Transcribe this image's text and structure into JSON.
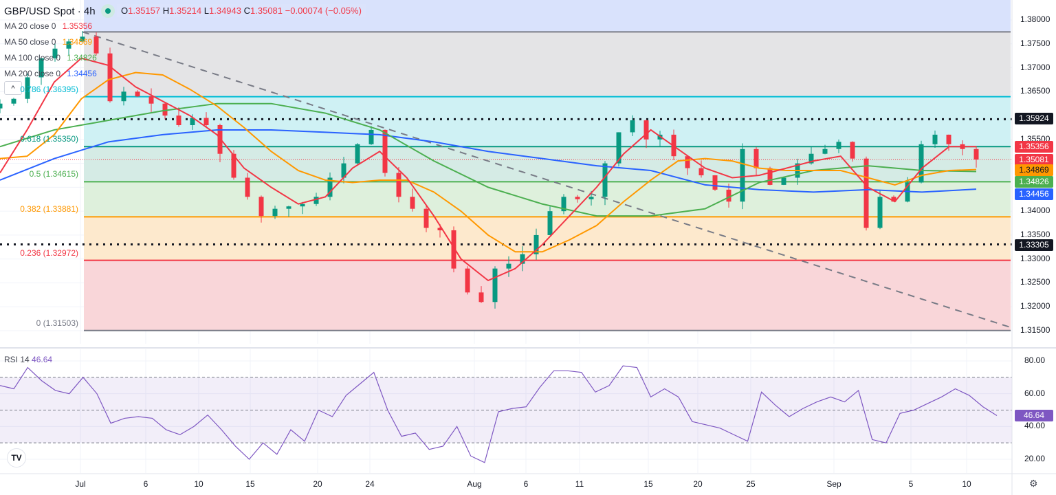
{
  "header": {
    "symbol": "GBP/USD Spot · 4h",
    "open_label": "O",
    "open": "1.35157",
    "high_label": "H",
    "high": "1.35214",
    "low_label": "L",
    "low": "1.34943",
    "close_label": "C",
    "close": "1.35081",
    "change": "−0.00074 (−0.05%)"
  },
  "legend": [
    {
      "label": "MA 20 close 0",
      "value": "1.35356",
      "color": "#f23645"
    },
    {
      "label": "MA 50 close 0",
      "value": "1.34869",
      "color": "#ff9800"
    },
    {
      "label": "MA 100 close 0",
      "value": "1.34826",
      "color": "#4caf50"
    },
    {
      "label": "MA 200 close 0",
      "value": "1.34456",
      "color": "#2962ff"
    }
  ],
  "collapse_icon": "^",
  "fib_levels": [
    {
      "label": "0.786 (1.36395)",
      "price": 1.36395,
      "color": "#00bcd4"
    },
    {
      "label": "0.618 (1.35350)",
      "price": 1.3535,
      "color": "#089981"
    },
    {
      "label": "0.5 (1.34615)",
      "price": 1.34615,
      "color": "#4caf50"
    },
    {
      "label": "0.382 (1.33881)",
      "price": 1.33881,
      "color": "#ff9800"
    },
    {
      "label": "0.236 (1.32972)",
      "price": 1.32972,
      "color": "#f23645"
    },
    {
      "label": "0 (1.31503)",
      "price": 1.31503,
      "color": "#787b86"
    }
  ],
  "price_axis": [
    "1.38000",
    "1.37500",
    "1.37000",
    "1.36500",
    "1.35500",
    "1.34000",
    "1.33500",
    "1.33000",
    "1.32500",
    "1.32000",
    "1.31500"
  ],
  "price_tags": [
    {
      "value": "1.35924",
      "bg": "#131722",
      "fg": "#ffffff"
    },
    {
      "value": "1.35356",
      "bg": "#f23645",
      "fg": "#ffffff"
    },
    {
      "value": "1.35081",
      "bg": "#f23645",
      "fg": "#ffffff"
    },
    {
      "value": "1.34869",
      "bg": "#ff9800",
      "fg": "#131722"
    },
    {
      "value": "1.34826",
      "bg": "#4caf50",
      "fg": "#ffffff"
    },
    {
      "value": "1.34456",
      "bg": "#2962ff",
      "fg": "#ffffff"
    },
    {
      "value": "1.33305",
      "bg": "#131722",
      "fg": "#ffffff"
    }
  ],
  "time_axis": [
    "Jul",
    "6",
    "10",
    "15",
    "20",
    "24",
    "Aug",
    "6",
    "11",
    "15",
    "20",
    "25",
    "Sep",
    "5",
    "10"
  ],
  "rsi": {
    "label": "RSI 14",
    "value": "46.64",
    "axis": [
      "80.00",
      "60.00",
      "40.00",
      "20.00"
    ],
    "tag": "46.64",
    "color": "#7e57c2"
  },
  "logo_text": "TV",
  "settings_icon": "gear-icon",
  "chart_data": {
    "type": "candlestick",
    "title": "GBP/USD Spot · 4h",
    "ylim": [
      1.3115,
      1.3845
    ],
    "horizontal_levels": [
      1.35924,
      1.33305
    ],
    "current_price": 1.35081,
    "trendline": [
      1.3775,
      1.3157
    ],
    "closes": [
      1.3625,
      1.3635,
      1.368,
      1.372,
      1.374,
      1.3755,
      1.3765,
      1.373,
      1.363,
      1.365,
      1.364,
      1.3625,
      1.36,
      1.358,
      1.3595,
      1.358,
      1.352,
      1.347,
      1.343,
      1.339,
      1.3405,
      1.341,
      1.3415,
      1.343,
      1.347,
      1.35,
      1.354,
      1.357,
      1.348,
      1.343,
      1.3405,
      1.3365,
      1.336,
      1.328,
      1.323,
      1.321,
      1.328,
      1.329,
      1.331,
      1.335,
      1.34,
      1.343,
      1.3425,
      1.343,
      1.35,
      1.3565,
      1.359,
      1.355,
      1.356,
      1.3515,
      1.349,
      1.3475,
      1.3445,
      1.342,
      1.353,
      1.349,
      1.3455,
      1.347,
      1.35,
      1.352,
      1.353,
      1.3545,
      1.351,
      1.3365,
      1.343,
      1.342,
      1.346,
      1.354,
      1.356,
      1.354,
      1.353,
      1.3508
    ],
    "ma20": [
      1.348,
      1.357,
      1.367,
      1.372,
      1.3705,
      1.366,
      1.363,
      1.36,
      1.356,
      1.349,
      1.345,
      1.3415,
      1.343,
      1.349,
      1.3525,
      1.347,
      1.339,
      1.33,
      1.3255,
      1.328,
      1.333,
      1.339,
      1.345,
      1.352,
      1.357,
      1.353,
      1.349,
      1.347,
      1.3475,
      1.349,
      1.3505,
      1.3515,
      1.345,
      1.342,
      1.349,
      1.3535,
      1.3535
    ],
    "ma50": [
      1.351,
      1.3515,
      1.356,
      1.3635,
      1.3675,
      1.369,
      1.3685,
      1.3655,
      1.362,
      1.3575,
      1.3525,
      1.3485,
      1.3465,
      1.346,
      1.3465,
      1.3465,
      1.344,
      1.34,
      1.335,
      1.3315,
      1.3315,
      1.334,
      1.337,
      1.342,
      1.3465,
      1.3505,
      1.351,
      1.3505,
      1.349,
      1.3485,
      1.3485,
      1.3485,
      1.347,
      1.3455,
      1.3475,
      1.3485,
      1.3487
    ],
    "ma100": [
      1.3535,
      1.357,
      1.359,
      1.361,
      1.3625,
      1.3625,
      1.3605,
      1.357,
      1.3505,
      1.345,
      1.3415,
      1.339,
      1.339,
      1.3405,
      1.346,
      1.3485,
      1.3495,
      1.3485,
      1.3483
    ],
    "ma200": [
      1.3465,
      1.351,
      1.3545,
      1.356,
      1.357,
      1.357,
      1.3565,
      1.356,
      1.3545,
      1.3525,
      1.351,
      1.3495,
      1.3485,
      1.3455,
      1.3445,
      1.344,
      1.3445,
      1.344,
      1.3446
    ],
    "rsi_values": [
      65,
      63,
      76,
      68,
      62,
      60,
      70,
      60,
      42,
      45,
      46,
      45,
      38,
      35,
      40,
      47,
      38,
      28,
      20,
      30,
      23,
      38,
      31,
      50,
      46,
      59,
      66,
      73,
      50,
      34,
      36,
      26,
      28,
      40,
      22,
      18,
      49,
      51,
      52,
      64,
      74,
      74,
      73,
      61,
      65,
      77,
      76,
      58,
      63,
      58,
      43,
      41,
      39,
      35,
      31,
      61,
      53,
      46,
      51,
      55,
      58,
      55,
      62,
      32,
      30,
      48,
      50,
      54,
      58,
      63,
      59,
      52,
      46.64
    ],
    "rsi_bands": [
      70,
      50,
      30
    ],
    "rsi_ylim": [
      14,
      86
    ]
  }
}
